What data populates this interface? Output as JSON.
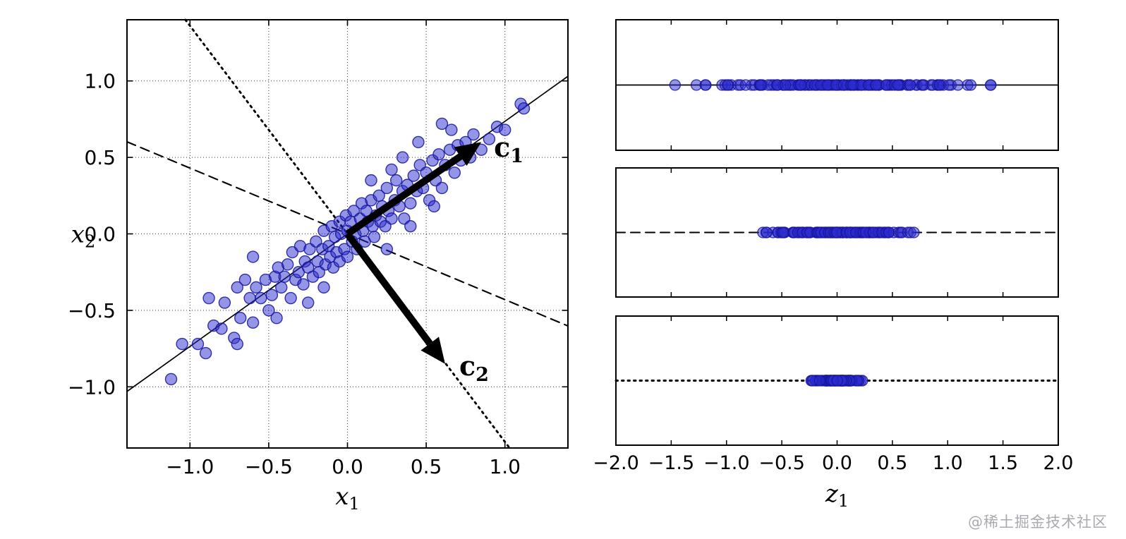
{
  "watermark": "@稀土掘金技术社区",
  "style": {
    "background": "#ffffff",
    "axis_color": "#000000",
    "point_fill": "#2b2bd0",
    "point_edge": "#15159c",
    "point_opacity": 0.5
  },
  "chart_data": [
    {
      "id": "scatter-panel",
      "type": "scatter",
      "title": "",
      "xlabel": {
        "var": "x",
        "sub": "1"
      },
      "ylabel": {
        "var": "x",
        "sub": "2"
      },
      "xlim": [
        -1.4,
        1.4
      ],
      "ylim": [
        -1.4,
        1.4
      ],
      "grid": true,
      "xticks": {
        "values": [
          -1.0,
          -0.5,
          0.0,
          0.5,
          1.0
        ],
        "labels": [
          "−1.0",
          "−0.5",
          "0.0",
          "0.5",
          "1.0"
        ]
      },
      "yticks": {
        "values": [
          1.0,
          0.5,
          0.0,
          -0.5,
          -1.0
        ],
        "labels": [
          "1.0",
          "0.5",
          "0.0",
          "−0.5",
          "−1.0"
        ]
      },
      "axis_lines": [
        {
          "name": "pc1-axis-line",
          "style": "solid",
          "slope": 0.736
        },
        {
          "name": "secondary-axis-line",
          "style": "dashed",
          "slope": -0.43
        },
        {
          "name": "pc2-axis-line",
          "style": "dotted",
          "slope": -1.36
        }
      ],
      "arrows": [
        {
          "name": "c1-arrow",
          "label": {
            "var": "c",
            "sub": "1"
          },
          "from": [
            0,
            0
          ],
          "to": [
            0.85,
            0.6
          ],
          "label_at": [
            0.93,
            0.56
          ]
        },
        {
          "name": "c2-arrow",
          "label": {
            "var": "c",
            "sub": "2"
          },
          "from": [
            0,
            0
          ],
          "to": [
            0.62,
            -0.85
          ],
          "label_at": [
            0.71,
            -0.87
          ]
        }
      ],
      "points": [
        [
          -1.12,
          -0.95
        ],
        [
          -1.05,
          -0.72
        ],
        [
          -0.95,
          -0.72
        ],
        [
          -0.9,
          -0.78
        ],
        [
          -0.88,
          -0.42
        ],
        [
          -0.85,
          -0.6
        ],
        [
          -0.8,
          -0.62
        ],
        [
          -0.78,
          -0.45
        ],
        [
          -0.72,
          -0.68
        ],
        [
          -0.7,
          -0.72
        ],
        [
          -0.7,
          -0.35
        ],
        [
          -0.68,
          -0.55
        ],
        [
          -0.65,
          -0.3
        ],
        [
          -0.62,
          -0.42
        ],
        [
          -0.6,
          -0.58
        ],
        [
          -0.6,
          -0.15
        ],
        [
          -0.58,
          -0.35
        ],
        [
          -0.55,
          -0.42
        ],
        [
          -0.52,
          -0.3
        ],
        [
          -0.5,
          -0.5
        ],
        [
          -0.48,
          -0.4
        ],
        [
          -0.46,
          -0.28
        ],
        [
          -0.45,
          -0.55
        ],
        [
          -0.44,
          -0.22
        ],
        [
          -0.42,
          -0.35
        ],
        [
          -0.4,
          -0.28
        ],
        [
          -0.38,
          -0.2
        ],
        [
          -0.36,
          -0.42
        ],
        [
          -0.35,
          -0.12
        ],
        [
          -0.33,
          -0.3
        ],
        [
          -0.31,
          -0.25
        ],
        [
          -0.3,
          -0.08
        ],
        [
          -0.28,
          -0.33
        ],
        [
          -0.27,
          -0.18
        ],
        [
          -0.25,
          -0.45
        ],
        [
          -0.25,
          -0.22
        ],
        [
          -0.24,
          -0.1
        ],
        [
          -0.22,
          -0.28
        ],
        [
          -0.2,
          -0.05
        ],
        [
          -0.19,
          -0.18
        ],
        [
          -0.18,
          -0.25
        ],
        [
          -0.16,
          -0.1
        ],
        [
          -0.15,
          -0.35
        ],
        [
          -0.15,
          0.02
        ],
        [
          -0.14,
          -0.2
        ],
        [
          -0.12,
          -0.08
        ],
        [
          -0.11,
          -0.15
        ],
        [
          -0.1,
          0.05
        ],
        [
          -0.09,
          -0.22
        ],
        [
          -0.08,
          -0.02
        ],
        [
          -0.07,
          -0.12
        ],
        [
          -0.05,
          0.08
        ],
        [
          -0.05,
          -0.18
        ],
        [
          -0.04,
          0.0
        ],
        [
          -0.02,
          -0.1
        ],
        [
          -0.01,
          0.12
        ],
        [
          0.0,
          0.02
        ],
        [
          0.0,
          -0.15
        ],
        [
          0.02,
          0.08
        ],
        [
          0.03,
          -0.05
        ],
        [
          0.04,
          0.15
        ],
        [
          0.05,
          0.0
        ],
        [
          0.06,
          -0.1
        ],
        [
          0.08,
          0.1
        ],
        [
          0.09,
          0.2
        ],
        [
          0.1,
          0.02
        ],
        [
          0.11,
          -0.05
        ],
        [
          0.12,
          0.15
        ],
        [
          0.13,
          0.08
        ],
        [
          0.15,
          0.22
        ],
        [
          0.15,
          0.35
        ],
        [
          0.16,
          0.05
        ],
        [
          0.17,
          -0.02
        ],
        [
          0.18,
          0.12
        ],
        [
          0.2,
          0.25
        ],
        [
          0.21,
          0.08
        ],
        [
          0.22,
          0.18
        ],
        [
          0.24,
          0.05
        ],
        [
          0.25,
          0.3
        ],
        [
          0.25,
          -0.1
        ],
        [
          0.26,
          0.15
        ],
        [
          0.28,
          0.42
        ],
        [
          0.28,
          0.1
        ],
        [
          0.3,
          0.22
        ],
        [
          0.31,
          0.35
        ],
        [
          0.33,
          0.18
        ],
        [
          0.35,
          0.5
        ],
        [
          0.35,
          0.28
        ],
        [
          0.36,
          0.1
        ],
        [
          0.38,
          0.32
        ],
        [
          0.4,
          0.2
        ],
        [
          0.4,
          0.05
        ],
        [
          0.42,
          0.38
        ],
        [
          0.44,
          0.28
        ],
        [
          0.45,
          0.6
        ],
        [
          0.46,
          0.45
        ],
        [
          0.48,
          0.3
        ],
        [
          0.5,
          0.4
        ],
        [
          0.52,
          0.22
        ],
        [
          0.54,
          0.48
        ],
        [
          0.55,
          0.18
        ],
        [
          0.56,
          0.35
        ],
        [
          0.58,
          0.52
        ],
        [
          0.6,
          0.72
        ],
        [
          0.6,
          0.3
        ],
        [
          0.62,
          0.45
        ],
        [
          0.65,
          0.55
        ],
        [
          0.66,
          0.68
        ],
        [
          0.68,
          0.4
        ],
        [
          0.7,
          0.58
        ],
        [
          0.72,
          0.48
        ],
        [
          0.75,
          0.6
        ],
        [
          0.78,
          0.5
        ],
        [
          0.8,
          0.65
        ],
        [
          0.85,
          0.55
        ],
        [
          0.9,
          0.62
        ],
        [
          0.95,
          0.7
        ],
        [
          1.0,
          0.68
        ],
        [
          1.1,
          0.85
        ],
        [
          1.12,
          0.82
        ]
      ]
    },
    {
      "id": "projection-strips",
      "type": "strip-projections",
      "xlabel": {
        "var": "z",
        "sub": "1"
      },
      "xlim": [
        -2.0,
        2.0
      ],
      "xticks": {
        "values": [
          -2.0,
          -1.5,
          -1.0,
          -0.5,
          0.0,
          0.5,
          1.0,
          1.5,
          2.0
        ],
        "labels": [
          "−2.0",
          "−1.5",
          "−1.0",
          "−0.5",
          "0.0",
          "0.5",
          "1.0",
          "1.5",
          "2.0"
        ]
      },
      "strips": [
        {
          "name": "projection-onto-c1",
          "style": "solid",
          "direction": [
            0.806,
            0.592
          ]
        },
        {
          "name": "projection-onto-dashed-axis",
          "style": "dashed",
          "direction": [
            0.915,
            -0.403
          ]
        },
        {
          "name": "projection-onto-c2",
          "style": "dotted",
          "direction": [
            0.592,
            -0.806
          ]
        }
      ]
    }
  ]
}
